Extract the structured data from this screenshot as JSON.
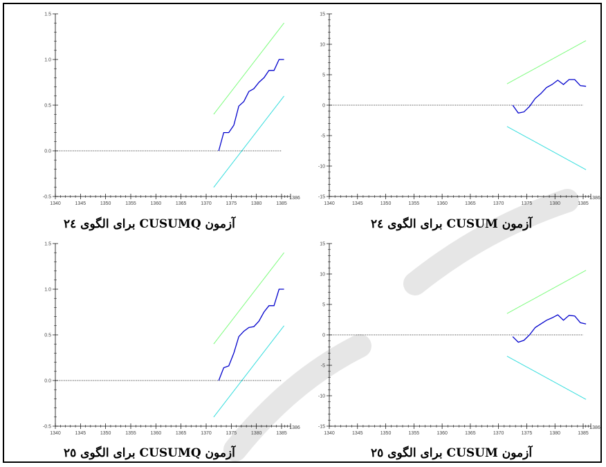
{
  "captions": {
    "p1": "آزمون CUSUMQ برای الگوی ٢٤",
    "p2": "آزمون CUSUM برای الگوی ٢٤",
    "p3": "آزمون CUSUMQ برای الگوی ٢٥",
    "p4": "آزمون CUSUM برای الگوی ٢٥"
  },
  "colors": {
    "stat": "#0000cc",
    "upper": "#7cfc7c",
    "lower": "#33dddd",
    "zero": "#000000",
    "watermark": "#e6e6e6"
  },
  "chart_data": [
    {
      "type": "line",
      "title": "آزمون CUSUMQ برای الگوی ٢٤",
      "xlim": [
        1340,
        1386
      ],
      "ylim": [
        -0.5,
        1.5
      ],
      "x_ticks": [
        1340,
        1345,
        1350,
        1355,
        1360,
        1365,
        1370,
        1375,
        1380,
        1385,
        1386
      ],
      "y_ticks": [
        "-0.5",
        "0.0",
        "0.5",
        "1.0",
        "1.5"
      ],
      "zero_line": 0,
      "series": [
        {
          "role": "stat",
          "x": [
            1372.5,
            1373.5,
            1374.5,
            1375.5,
            1376.5,
            1377.5,
            1378.5,
            1379.5,
            1380.5,
            1381.5,
            1382.5,
            1383.5,
            1384.5,
            1385.5
          ],
          "y": [
            0.0,
            0.2,
            0.2,
            0.28,
            0.49,
            0.54,
            0.65,
            0.68,
            0.75,
            0.8,
            0.88,
            0.88,
            1.0,
            1.0
          ]
        },
        {
          "role": "upper",
          "x": [
            1371.5,
            1385.5
          ],
          "y": [
            0.4,
            1.4
          ]
        },
        {
          "role": "lower",
          "x": [
            1371.5,
            1385.5
          ],
          "y": [
            -0.4,
            0.6
          ]
        }
      ]
    },
    {
      "type": "line",
      "title": "آزمون CUSUM برای الگوی ٢٤",
      "xlim": [
        1340,
        1386
      ],
      "ylim": [
        -15,
        15
      ],
      "x_ticks": [
        1340,
        1345,
        1350,
        1355,
        1360,
        1365,
        1370,
        1375,
        1380,
        1385,
        1386
      ],
      "y_ticks": [
        "-15",
        "-10",
        "-5",
        "0",
        "5",
        "10",
        "15"
      ],
      "zero_line": 0,
      "series": [
        {
          "role": "stat",
          "x": [
            1372.5,
            1373.5,
            1374.5,
            1375.5,
            1376.5,
            1377.5,
            1378.5,
            1379.5,
            1380.5,
            1381.5,
            1382.5,
            1383.5,
            1384.5,
            1385.5
          ],
          "y": [
            0.0,
            -1.3,
            -1.1,
            -0.2,
            1.1,
            1.9,
            2.9,
            3.4,
            4.1,
            3.4,
            4.2,
            4.2,
            3.2,
            3.1
          ]
        },
        {
          "role": "upper",
          "x": [
            1371.5,
            1385.5
          ],
          "y": [
            3.5,
            10.6
          ]
        },
        {
          "role": "lower",
          "x": [
            1371.5,
            1385.5
          ],
          "y": [
            -3.5,
            -10.6
          ]
        }
      ]
    },
    {
      "type": "line",
      "title": "آزمون CUSUMQ برای الگوی ٢٥",
      "xlim": [
        1340,
        1386
      ],
      "ylim": [
        -0.5,
        1.5
      ],
      "x_ticks": [
        1340,
        1345,
        1350,
        1355,
        1360,
        1365,
        1370,
        1375,
        1380,
        1385,
        1386
      ],
      "y_ticks": [
        "-0.5",
        "0.0",
        "0.5",
        "1.0",
        "1.5"
      ],
      "zero_line": 0,
      "series": [
        {
          "role": "stat",
          "x": [
            1372.5,
            1373.5,
            1374.5,
            1375.5,
            1376.5,
            1377.5,
            1378.5,
            1379.5,
            1380.5,
            1381.5,
            1382.5,
            1383.5,
            1384.5,
            1385.5
          ],
          "y": [
            0.0,
            0.14,
            0.16,
            0.3,
            0.48,
            0.54,
            0.58,
            0.59,
            0.65,
            0.75,
            0.82,
            0.82,
            1.0,
            1.0
          ]
        },
        {
          "role": "upper",
          "x": [
            1371.5,
            1385.5
          ],
          "y": [
            0.4,
            1.4
          ]
        },
        {
          "role": "lower",
          "x": [
            1371.5,
            1385.5
          ],
          "y": [
            -0.4,
            0.6
          ]
        }
      ]
    },
    {
      "type": "line",
      "title": "آزمون CUSUM برای الگوی ٢٥",
      "xlim": [
        1340,
        1386
      ],
      "ylim": [
        -15,
        15
      ],
      "x_ticks": [
        1340,
        1345,
        1350,
        1355,
        1360,
        1365,
        1370,
        1375,
        1380,
        1385,
        1386
      ],
      "y_ticks": [
        "-15",
        "-10",
        "-5",
        "0",
        "5",
        "10",
        "15"
      ],
      "zero_line": 0,
      "series": [
        {
          "role": "stat",
          "x": [
            1372.5,
            1373.5,
            1374.5,
            1375.5,
            1376.5,
            1377.5,
            1378.5,
            1379.5,
            1380.5,
            1381.5,
            1382.5,
            1383.5,
            1384.5,
            1385.5
          ],
          "y": [
            -0.3,
            -1.2,
            -0.9,
            0.0,
            1.2,
            1.8,
            2.4,
            2.8,
            3.3,
            2.4,
            3.2,
            3.1,
            2.0,
            1.8
          ]
        },
        {
          "role": "upper",
          "x": [
            1371.5,
            1385.5
          ],
          "y": [
            3.5,
            10.6
          ]
        },
        {
          "role": "lower",
          "x": [
            1371.5,
            1385.5
          ],
          "y": [
            -3.5,
            -10.6
          ]
        }
      ]
    }
  ]
}
